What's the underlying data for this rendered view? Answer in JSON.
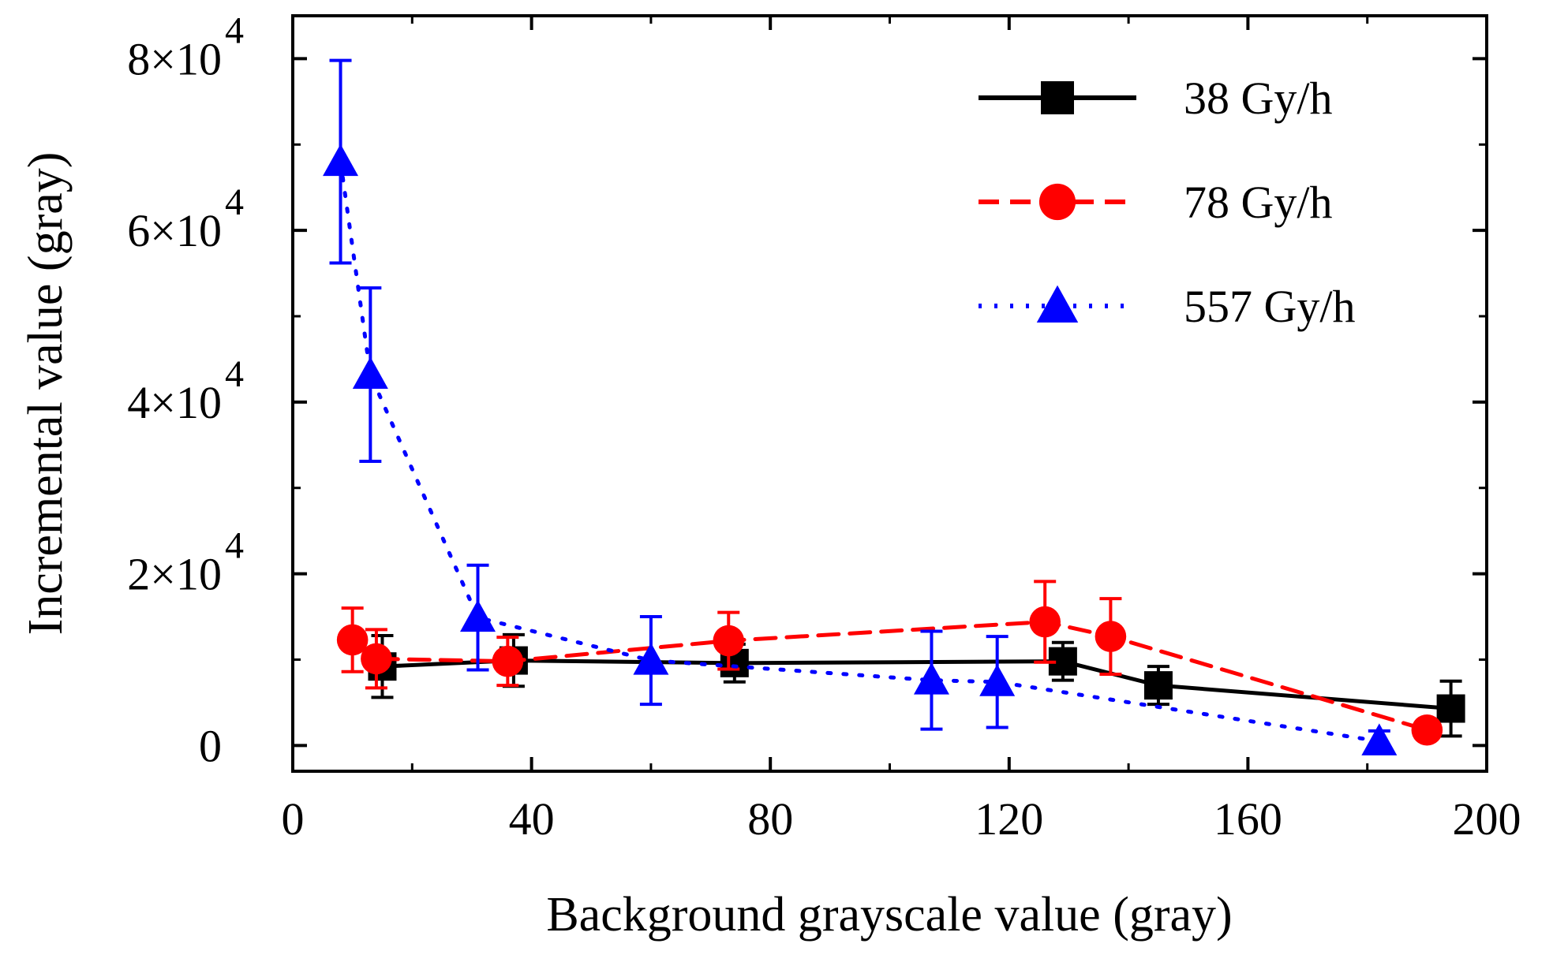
{
  "chart_data": {
    "type": "scatter",
    "title": "",
    "xlabel": "Background grayscale value (gray)",
    "ylabel": "Incremental value (gray)",
    "xlim": [
      0,
      200
    ],
    "ylim": [
      -3000,
      85000
    ],
    "x_ticks": [
      0,
      40,
      80,
      120,
      160,
      200
    ],
    "x_tick_labels": [
      "0",
      "40",
      "80",
      "120",
      "160",
      "200"
    ],
    "y_ticks": [
      0,
      20000,
      40000,
      60000,
      80000
    ],
    "y_tick_labels": [
      {
        "mantissa": "0",
        "exponent": ""
      },
      {
        "mantissa": "2×10",
        "exponent": "4"
      },
      {
        "mantissa": "4×10",
        "exponent": "4"
      },
      {
        "mantissa": "6×10",
        "exponent": "4"
      },
      {
        "mantissa": "8×10",
        "exponent": "4"
      }
    ],
    "legend_position": "top-right",
    "grid": false,
    "series": [
      {
        "name": "38 Gy/h",
        "color": "#000000",
        "marker": "square",
        "line": "solid",
        "x": [
          15,
          37,
          74,
          129,
          145,
          194
        ],
        "y": [
          9200,
          9900,
          9600,
          9800,
          7000,
          4300
        ],
        "err": [
          3600,
          3000,
          2200,
          2200,
          2200,
          3200
        ]
      },
      {
        "name": "78 Gy/h",
        "color": "#ff0000",
        "marker": "circle",
        "line": "dashed",
        "x": [
          10,
          14,
          36,
          73,
          126,
          137,
          190
        ],
        "y": [
          12300,
          10100,
          9800,
          12200,
          14400,
          12700,
          1800
        ],
        "err": [
          3700,
          3400,
          2800,
          3300,
          4700,
          4400,
          800
        ]
      },
      {
        "name": "557 Gy/h",
        "color": "#0000ff",
        "marker": "triangle",
        "line": "dotted",
        "x": [
          8,
          13,
          31,
          60,
          107,
          118,
          182
        ],
        "y": [
          68000,
          43200,
          14900,
          9900,
          7600,
          7400,
          500
        ],
        "err": [
          11800,
          10100,
          6100,
          5100,
          5700,
          5300,
          1200
        ]
      }
    ]
  }
}
